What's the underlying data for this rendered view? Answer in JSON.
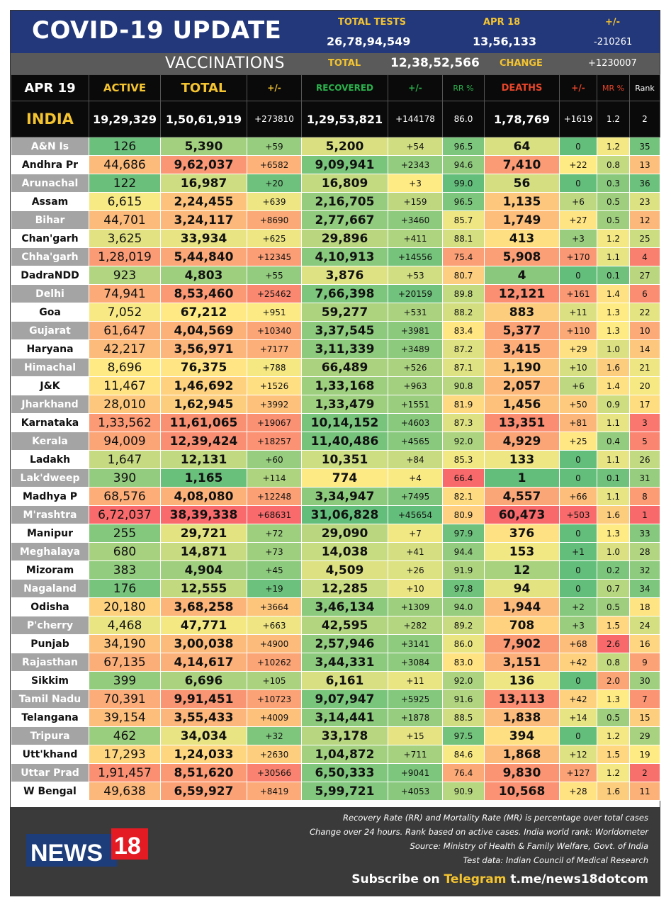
{
  "banner": {
    "title": "COVID-19 UPDATE",
    "total_tests_label": "TOTAL TESTS",
    "total_tests_value": "26,78,94,549",
    "date_label": "APR 18",
    "date_value": "13,56,133",
    "change_label": "+/-",
    "change_value": "-210261"
  },
  "vaccinations": {
    "title": "VACCINATIONS",
    "total_label": "TOTAL",
    "total_value": "12,38,52,566",
    "change_label": "CHANGE",
    "change_value": "+1230007"
  },
  "header": {
    "date": "APR 19",
    "active": "ACTIVE",
    "total": "TOTAL",
    "change1": "+/-",
    "recovered": "RECOVERED",
    "change2": "+/-",
    "rr": "RR %",
    "deaths": "DEATHS",
    "change3": "+/-",
    "mr": "MR %",
    "rank": "Rank"
  },
  "india": {
    "name": "INDIA",
    "active": "19,29,329",
    "total": "1,50,61,919",
    "total_change": "+273810",
    "recovered": "1,29,53,821",
    "recovered_change": "+144178",
    "rr": "86.0",
    "deaths": "1,78,769",
    "deaths_change": "+1619",
    "mr": "1.2",
    "rank": "2"
  },
  "rows": [
    {
      "name": "A&N Is",
      "active": "126",
      "total": "5,390",
      "tc": "+59",
      "recovered": "5,200",
      "rc": "+54",
      "rr": "96.5",
      "deaths": "64",
      "dc": "0",
      "mr": "1.2",
      "rank": "35"
    },
    {
      "name": "Andhra Pr",
      "active": "44,686",
      "total": "9,62,037",
      "tc": "+6582",
      "recovered": "9,09,941",
      "rc": "+2343",
      "rr": "94.6",
      "deaths": "7,410",
      "dc": "+22",
      "mr": "0.8",
      "rank": "13"
    },
    {
      "name": "Arunachal",
      "active": "122",
      "total": "16,987",
      "tc": "+20",
      "recovered": "16,809",
      "rc": "+3",
      "rr": "99.0",
      "deaths": "56",
      "dc": "0",
      "mr": "0.3",
      "rank": "36"
    },
    {
      "name": "Assam",
      "active": "6,615",
      "total": "2,24,455",
      "tc": "+639",
      "recovered": "2,16,705",
      "rc": "+159",
      "rr": "96.5",
      "deaths": "1,135",
      "dc": "+6",
      "mr": "0.5",
      "rank": "23"
    },
    {
      "name": "Bihar",
      "active": "44,701",
      "total": "3,24,117",
      "tc": "+8690",
      "recovered": "2,77,667",
      "rc": "+3460",
      "rr": "85.7",
      "deaths": "1,749",
      "dc": "+27",
      "mr": "0.5",
      "rank": "12"
    },
    {
      "name": "Chan'garh",
      "active": "3,625",
      "total": "33,934",
      "tc": "+625",
      "recovered": "29,896",
      "rc": "+411",
      "rr": "88.1",
      "deaths": "413",
      "dc": "+3",
      "mr": "1.2",
      "rank": "25"
    },
    {
      "name": "Chha'garh",
      "active": "1,28,019",
      "total": "5,44,840",
      "tc": "+12345",
      "recovered": "4,10,913",
      "rc": "+14556",
      "rr": "75.4",
      "deaths": "5,908",
      "dc": "+170",
      "mr": "1.1",
      "rank": "4"
    },
    {
      "name": "DadraNDD",
      "active": "923",
      "total": "4,803",
      "tc": "+55",
      "recovered": "3,876",
      "rc": "+53",
      "rr": "80.7",
      "deaths": "4",
      "dc": "0",
      "mr": "0.1",
      "rank": "27"
    },
    {
      "name": "Delhi",
      "active": "74,941",
      "total": "8,53,460",
      "tc": "+25462",
      "recovered": "7,66,398",
      "rc": "+20159",
      "rr": "89.8",
      "deaths": "12,121",
      "dc": "+161",
      "mr": "1.4",
      "rank": "6"
    },
    {
      "name": "Goa",
      "active": "7,052",
      "total": "67,212",
      "tc": "+951",
      "recovered": "59,277",
      "rc": "+531",
      "rr": "88.2",
      "deaths": "883",
      "dc": "+11",
      "mr": "1.3",
      "rank": "22"
    },
    {
      "name": "Gujarat",
      "active": "61,647",
      "total": "4,04,569",
      "tc": "+10340",
      "recovered": "3,37,545",
      "rc": "+3981",
      "rr": "83.4",
      "deaths": "5,377",
      "dc": "+110",
      "mr": "1.3",
      "rank": "10"
    },
    {
      "name": "Haryana",
      "active": "42,217",
      "total": "3,56,971",
      "tc": "+7177",
      "recovered": "3,11,339",
      "rc": "+3489",
      "rr": "87.2",
      "deaths": "3,415",
      "dc": "+29",
      "mr": "1.0",
      "rank": "14"
    },
    {
      "name": "Himachal",
      "active": "8,696",
      "total": "76,375",
      "tc": "+788",
      "recovered": "66,489",
      "rc": "+526",
      "rr": "87.1",
      "deaths": "1,190",
      "dc": "+10",
      "mr": "1.6",
      "rank": "21"
    },
    {
      "name": "J&K",
      "active": "11,467",
      "total": "1,46,692",
      "tc": "+1526",
      "recovered": "1,33,168",
      "rc": "+963",
      "rr": "90.8",
      "deaths": "2,057",
      "dc": "+6",
      "mr": "1.4",
      "rank": "20"
    },
    {
      "name": "Jharkhand",
      "active": "28,010",
      "total": "1,62,945",
      "tc": "+3992",
      "recovered": "1,33,479",
      "rc": "+1551",
      "rr": "81.9",
      "deaths": "1,456",
      "dc": "+50",
      "mr": "0.9",
      "rank": "17"
    },
    {
      "name": "Karnataka",
      "active": "1,33,562",
      "total": "11,61,065",
      "tc": "+19067",
      "recovered": "10,14,152",
      "rc": "+4603",
      "rr": "87.3",
      "deaths": "13,351",
      "dc": "+81",
      "mr": "1.1",
      "rank": "3"
    },
    {
      "name": "Kerala",
      "active": "94,009",
      "total": "12,39,424",
      "tc": "+18257",
      "recovered": "11,40,486",
      "rc": "+4565",
      "rr": "92.0",
      "deaths": "4,929",
      "dc": "+25",
      "mr": "0.4",
      "rank": "5"
    },
    {
      "name": "Ladakh",
      "active": "1,647",
      "total": "12,131",
      "tc": "+60",
      "recovered": "10,351",
      "rc": "+84",
      "rr": "85.3",
      "deaths": "133",
      "dc": "0",
      "mr": "1.1",
      "rank": "26"
    },
    {
      "name": "Lak'dweep",
      "active": "390",
      "total": "1,165",
      "tc": "+114",
      "recovered": "774",
      "rc": "+4",
      "rr": "66.4",
      "deaths": "1",
      "dc": "0",
      "mr": "0.1",
      "rank": "31"
    },
    {
      "name": "Madhya P",
      "active": "68,576",
      "total": "4,08,080",
      "tc": "+12248",
      "recovered": "3,34,947",
      "rc": "+7495",
      "rr": "82.1",
      "deaths": "4,557",
      "dc": "+66",
      "mr": "1.1",
      "rank": "8"
    },
    {
      "name": "M'rashtra",
      "active": "6,72,037",
      "total": "38,39,338",
      "tc": "+68631",
      "recovered": "31,06,828",
      "rc": "+45654",
      "rr": "80.9",
      "deaths": "60,473",
      "dc": "+503",
      "mr": "1.6",
      "rank": "1"
    },
    {
      "name": "Manipur",
      "active": "255",
      "total": "29,721",
      "tc": "+72",
      "recovered": "29,090",
      "rc": "+7",
      "rr": "97.9",
      "deaths": "376",
      "dc": "0",
      "mr": "1.3",
      "rank": "33"
    },
    {
      "name": "Meghalaya",
      "active": "680",
      "total": "14,871",
      "tc": "+73",
      "recovered": "14,038",
      "rc": "+41",
      "rr": "94.4",
      "deaths": "153",
      "dc": "+1",
      "mr": "1.0",
      "rank": "28"
    },
    {
      "name": "Mizoram",
      "active": "383",
      "total": "4,904",
      "tc": "+45",
      "recovered": "4,509",
      "rc": "+26",
      "rr": "91.9",
      "deaths": "12",
      "dc": "0",
      "mr": "0.2",
      "rank": "32"
    },
    {
      "name": "Nagaland",
      "active": "176",
      "total": "12,555",
      "tc": "+19",
      "recovered": "12,285",
      "rc": "+10",
      "rr": "97.8",
      "deaths": "94",
      "dc": "0",
      "mr": "0.7",
      "rank": "34"
    },
    {
      "name": "Odisha",
      "active": "20,180",
      "total": "3,68,258",
      "tc": "+3664",
      "recovered": "3,46,134",
      "rc": "+1309",
      "rr": "94.0",
      "deaths": "1,944",
      "dc": "+2",
      "mr": "0.5",
      "rank": "18"
    },
    {
      "name": "P'cherry",
      "active": "4,468",
      "total": "47,771",
      "tc": "+663",
      "recovered": "42,595",
      "rc": "+282",
      "rr": "89.2",
      "deaths": "708",
      "dc": "+3",
      "mr": "1.5",
      "rank": "24"
    },
    {
      "name": "Punjab",
      "active": "34,190",
      "total": "3,00,038",
      "tc": "+4900",
      "recovered": "2,57,946",
      "rc": "+3141",
      "rr": "86.0",
      "deaths": "7,902",
      "dc": "+68",
      "mr": "2.6",
      "rank": "16"
    },
    {
      "name": "Rajasthan",
      "active": "67,135",
      "total": "4,14,617",
      "tc": "+10262",
      "recovered": "3,44,331",
      "rc": "+3084",
      "rr": "83.0",
      "deaths": "3,151",
      "dc": "+42",
      "mr": "0.8",
      "rank": "9"
    },
    {
      "name": "Sikkim",
      "active": "399",
      "total": "6,696",
      "tc": "+105",
      "recovered": "6,161",
      "rc": "+11",
      "rr": "92.0",
      "deaths": "136",
      "dc": "0",
      "mr": "2.0",
      "rank": "30"
    },
    {
      "name": "Tamil Nadu",
      "active": "70,391",
      "total": "9,91,451",
      "tc": "+10723",
      "recovered": "9,07,947",
      "rc": "+5925",
      "rr": "91.6",
      "deaths": "13,113",
      "dc": "+42",
      "mr": "1.3",
      "rank": "7"
    },
    {
      "name": "Telangana",
      "active": "39,154",
      "total": "3,55,433",
      "tc": "+4009",
      "recovered": "3,14,441",
      "rc": "+1878",
      "rr": "88.5",
      "deaths": "1,838",
      "dc": "+14",
      "mr": "0.5",
      "rank": "15"
    },
    {
      "name": "Tripura",
      "active": "462",
      "total": "34,034",
      "tc": "+32",
      "recovered": "33,178",
      "rc": "+15",
      "rr": "97.5",
      "deaths": "394",
      "dc": "0",
      "mr": "1.2",
      "rank": "29"
    },
    {
      "name": "Utt'khand",
      "active": "17,293",
      "total": "1,24,033",
      "tc": "+2630",
      "recovered": "1,04,872",
      "rc": "+711",
      "rr": "84.6",
      "deaths": "1,868",
      "dc": "+12",
      "mr": "1.5",
      "rank": "19"
    },
    {
      "name": "Uttar Prad",
      "active": "1,91,457",
      "total": "8,51,620",
      "tc": "+30566",
      "recovered": "6,50,333",
      "rc": "+9041",
      "rr": "76.4",
      "deaths": "9,830",
      "dc": "+127",
      "mr": "1.2",
      "rank": "2"
    },
    {
      "name": "W Bengal",
      "active": "49,638",
      "total": "6,59,927",
      "tc": "+8419",
      "recovered": "5,99,721",
      "rc": "+4053",
      "rr": "90.9",
      "deaths": "10,568",
      "dc": "+28",
      "mr": "1.6",
      "rank": "11"
    }
  ],
  "footer": {
    "notes": [
      "Recovery Rate (RR) and Mortality Rate (MR) is percentage over total cases",
      "Change over 24 hours. Rank based on active cases. India world rank: Worldometer",
      "Source: Ministry of Health & Family Welfare, Govt. of India",
      "Test data: Indian Council of Medical Research"
    ],
    "subscribe_prefix": "Subscribe on",
    "subscribe_channel": "Telegram",
    "subscribe_link": "t.me/news18dotcom",
    "logo_word": "NEWS",
    "logo_number": "18"
  },
  "colors": {
    "banner_bg": "#23387a",
    "header_yellow": "#f4c430",
    "recovered_green": "#2bb24c",
    "deaths_red": "#e8462a",
    "logo_red": "#e41b23",
    "scale_green": "#63be7b",
    "scale_yellow": "#ffeb84",
    "scale_red": "#f8696b"
  }
}
